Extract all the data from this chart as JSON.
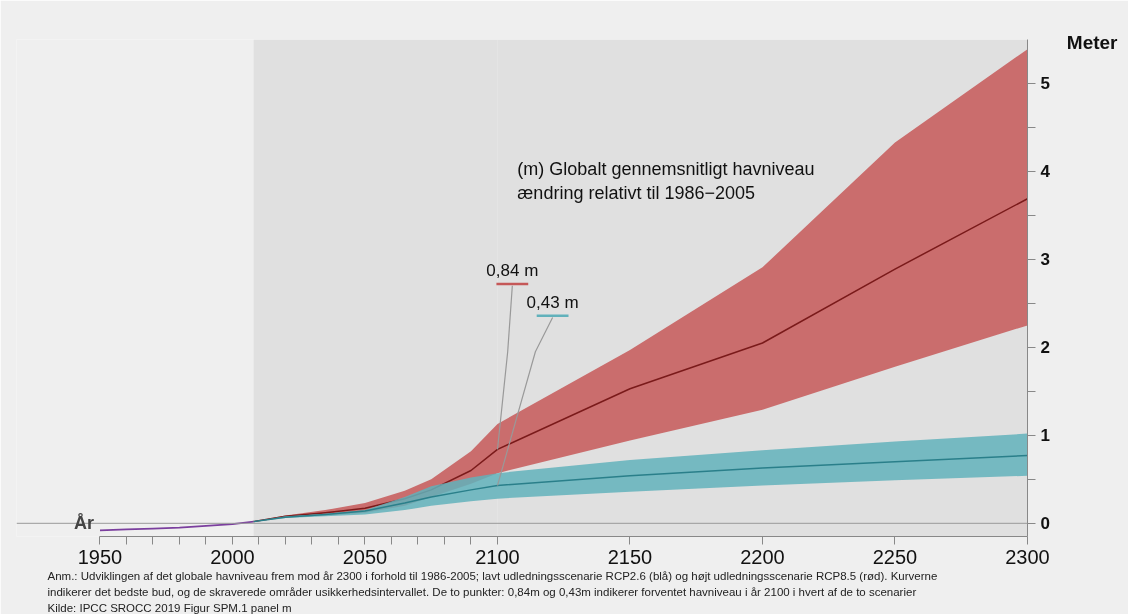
{
  "chart_data": {
    "type": "line",
    "title": "(m) Globalt gennemsnitligt havniveau\nændring relativt til 1986−2005",
    "xlabel": "År",
    "ylabel": "Meter",
    "xlim": [
      1950,
      2300
    ],
    "ylim": [
      -0.15,
      5.5
    ],
    "xticks": [
      1950,
      {
        "value": 1960,
        "label": null
      },
      {
        "value": 1970,
        "label": null
      },
      {
        "value": 1980,
        "label": null
      },
      {
        "value": 1990,
        "label": null
      },
      2000,
      {
        "value": 2010,
        "label": null
      },
      {
        "value": 2020,
        "label": null
      },
      {
        "value": 2030,
        "label": null
      },
      {
        "value": 2040,
        "label": null
      },
      2050,
      {
        "value": 2060,
        "label": null
      },
      {
        "value": 2070,
        "label": null
      },
      {
        "value": 2080,
        "label": null
      },
      {
        "value": 2090,
        "label": null
      },
      2100,
      2150,
      2200,
      2250,
      2300
    ],
    "yticks": [
      0,
      {
        "value": 0.5,
        "label": null
      },
      1,
      {
        "value": 1.5,
        "label": null
      },
      2,
      {
        "value": 2.5,
        "label": null
      },
      3,
      {
        "value": 3.5,
        "label": null
      },
      4,
      {
        "value": 4.5,
        "label": null
      },
      5
    ],
    "series": [
      {
        "color": "#7b3f9e",
        "x": [
          1950,
          1960,
          1970,
          1980,
          1990,
          2000,
          2008
        ],
        "values": [
          -0.08,
          -0.07,
          -0.06,
          -0.05,
          -0.03,
          -0.01,
          0.02
        ]
      },
      {
        "color": "#7a1a1a",
        "x": [
          2008,
          2020,
          2035,
          2050,
          2065,
          2075,
          2090,
          2100,
          2150,
          2200,
          2250,
          2300
        ],
        "values": [
          0.02,
          0.08,
          0.12,
          0.17,
          0.28,
          0.38,
          0.6,
          0.84,
          1.53,
          2.05,
          2.89,
          3.69
        ],
        "lower": [
          0.02,
          0.07,
          0.09,
          0.12,
          0.2,
          0.3,
          0.45,
          0.57,
          0.94,
          1.29,
          1.78,
          2.25
        ],
        "upper": [
          0.02,
          0.09,
          0.15,
          0.23,
          0.37,
          0.5,
          0.82,
          1.13,
          1.97,
          2.91,
          4.33,
          5.39
        ]
      },
      {
        "color": "#2a7f8a",
        "x": [
          2008,
          2020,
          2035,
          2050,
          2065,
          2075,
          2090,
          2100,
          2150,
          2200,
          2250,
          2300
        ],
        "values": [
          0.02,
          0.07,
          0.1,
          0.14,
          0.23,
          0.3,
          0.38,
          0.43,
          0.54,
          0.63,
          0.7,
          0.77
        ],
        "lower": [
          0.02,
          0.06,
          0.08,
          0.1,
          0.15,
          0.2,
          0.25,
          0.28,
          0.36,
          0.43,
          0.49,
          0.54
        ],
        "upper": [
          0.02,
          0.08,
          0.11,
          0.15,
          0.3,
          0.42,
          0.52,
          0.57,
          0.72,
          0.83,
          0.93,
          1.02
        ]
      }
    ],
    "bands": [
      {
        "axis": "x",
        "from": 2008,
        "to": 2100,
        "color": "#e0e0e0"
      },
      {
        "axis": "x",
        "from": 2100,
        "to": 2300,
        "color": "#e0e0e0"
      }
    ],
    "ref_lines": [
      {
        "axis": "y",
        "value": 0,
        "color": "#999999"
      }
    ],
    "annotations": [
      {
        "text": "0,84 m",
        "x": 2100,
        "y": 0.84
      },
      {
        "text": "0,43 m",
        "x": 2100,
        "y": 0.43
      },
      "Anm.: Udviklingen af det globale havniveau frem mod år 2300 i forhold til 1986-2005; lavt udledningsscenarie RCP2.6 (blå) og højt udledningsscenarie RCP8.5 (rød). Kurverne",
      "indikerer det bedste bud, og de skraverede områder usikkerhedsintervallet. De to punkter: 0,84m og 0,43m indikerer forventet havniveau i år 2100 i hvert af de to scenarier",
      "Kilde: IPCC SROCC 2019 Figur SPM.1 panel m"
    ],
    "grid": false
  }
}
